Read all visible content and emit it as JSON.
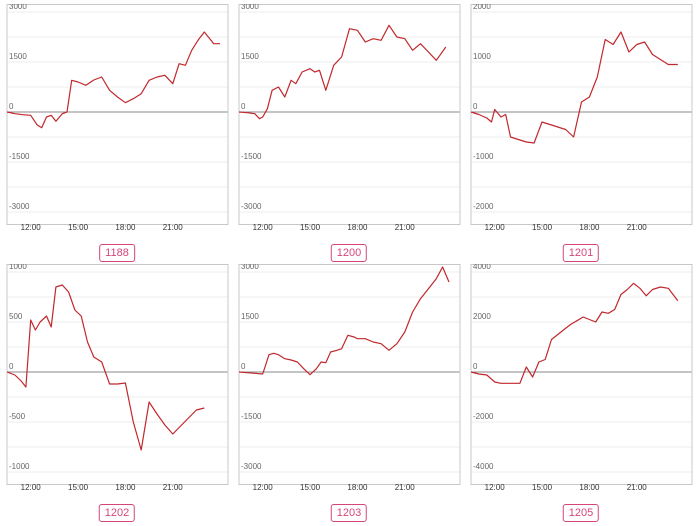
{
  "theme": {
    "line_color": "#c0282d",
    "badge_color": "#d6457a"
  },
  "chart_data": [
    {
      "type": "line",
      "label": "1188",
      "yticks": [
        3000,
        1500,
        0,
        -1500,
        -3000
      ],
      "ylim": [
        -3000,
        3000
      ],
      "xticks": [
        "12:00",
        "15:00",
        "18:00",
        "21:00"
      ],
      "xtick_pos": [
        11,
        14,
        17,
        20
      ],
      "xlim": [
        9.5,
        23.5
      ],
      "x": [
        9.5,
        10.0,
        10.5,
        11.0,
        11.4,
        11.7,
        12.0,
        12.3,
        12.6,
        13.0,
        13.3,
        13.6,
        14.0,
        14.5,
        15.0,
        15.5,
        16.0,
        16.5,
        17.0,
        17.5,
        18.0,
        18.5,
        19.0,
        19.5,
        20.0,
        20.4,
        20.8,
        21.2,
        21.6,
        22.0,
        22.6,
        23.0
      ],
      "y": [
        0,
        -50,
        -80,
        -100,
        -380,
        -470,
        -150,
        -100,
        -280,
        -50,
        0,
        950,
        900,
        800,
        960,
        1050,
        650,
        450,
        280,
        400,
        550,
        950,
        1050,
        1100,
        850,
        1450,
        1400,
        1850,
        2150,
        2400,
        2050,
        2050
      ]
    },
    {
      "type": "line",
      "label": "1200",
      "yticks": [
        3000,
        1500,
        0,
        -1500,
        -3000
      ],
      "ylim": [
        -3000,
        3000
      ],
      "xticks": [
        "12:00",
        "15:00",
        "18:00",
        "21:00"
      ],
      "xtick_pos": [
        11,
        14,
        17,
        20
      ],
      "xlim": [
        9.5,
        23.5
      ],
      "x": [
        9.5,
        10.0,
        10.5,
        10.8,
        11.0,
        11.3,
        11.6,
        12.0,
        12.4,
        12.8,
        13.1,
        13.5,
        14.0,
        14.3,
        14.6,
        15.0,
        15.5,
        16.0,
        16.5,
        17.0,
        17.5,
        18.0,
        18.5,
        19.0,
        19.5,
        20.0,
        20.5,
        21.0,
        21.5,
        22.0,
        22.6
      ],
      "y": [
        0,
        -20,
        -50,
        -200,
        -150,
        100,
        650,
        750,
        450,
        950,
        850,
        1200,
        1300,
        1200,
        1250,
        650,
        1400,
        1650,
        2500,
        2450,
        2100,
        2200,
        2150,
        2600,
        2250,
        2200,
        1850,
        2050,
        1800,
        1550,
        1950
      ]
    },
    {
      "type": "line",
      "label": "1201",
      "yticks": [
        2000,
        1000,
        0,
        -1000,
        -2000
      ],
      "ylim": [
        -2000,
        2000
      ],
      "xticks": [
        "12:00",
        "15:00",
        "18:00",
        "21:00"
      ],
      "xtick_pos": [
        11,
        14,
        17,
        20
      ],
      "xlim": [
        9.5,
        23.5
      ],
      "x": [
        9.5,
        10.0,
        10.5,
        10.8,
        11.0,
        11.4,
        11.7,
        12.0,
        12.5,
        13.0,
        13.5,
        14.0,
        14.5,
        15.0,
        15.5,
        16.0,
        16.5,
        17.0,
        17.5,
        18.0,
        18.5,
        19.0,
        19.5,
        20.0,
        20.5,
        21.0,
        21.5,
        22.0,
        22.6
      ],
      "y": [
        0,
        -50,
        -120,
        -200,
        50,
        -100,
        -50,
        -500,
        -550,
        -600,
        -620,
        -200,
        -250,
        -300,
        -350,
        -500,
        200,
        300,
        700,
        1450,
        1350,
        1600,
        1200,
        1350,
        1400,
        1150,
        1050,
        950,
        950
      ]
    },
    {
      "type": "line",
      "label": "1202",
      "yticks": [
        1000,
        500,
        0,
        -500,
        -1000
      ],
      "ylim": [
        -1000,
        1000
      ],
      "xticks": [
        "12:00",
        "15:00",
        "18:00",
        "21:00"
      ],
      "xtick_pos": [
        11,
        14,
        17,
        20
      ],
      "xlim": [
        9.5,
        23.5
      ],
      "x": [
        9.5,
        10.0,
        10.4,
        10.7,
        11.0,
        11.3,
        11.6,
        12.0,
        12.3,
        12.6,
        13.0,
        13.4,
        13.8,
        14.2,
        14.6,
        15.0,
        15.5,
        16.0,
        16.5,
        17.0,
        17.5,
        18.0,
        18.5,
        19.0,
        19.5,
        20.0,
        20.5,
        21.0,
        21.5,
        22.0
      ],
      "y": [
        0,
        -30,
        -90,
        -150,
        520,
        420,
        500,
        560,
        450,
        850,
        870,
        800,
        620,
        560,
        300,
        150,
        100,
        -120,
        -120,
        -110,
        -500,
        -780,
        -300,
        -420,
        -530,
        -620,
        -540,
        -460,
        -380,
        -360
      ]
    },
    {
      "type": "line",
      "label": "1203",
      "yticks": [
        3000,
        1500,
        0,
        -1500,
        -3000
      ],
      "ylim": [
        -3000,
        3000
      ],
      "xticks": [
        "12:00",
        "15:00",
        "18:00",
        "21:00"
      ],
      "xtick_pos": [
        11,
        14,
        17,
        20
      ],
      "xlim": [
        9.5,
        23.5
      ],
      "x": [
        9.5,
        10.0,
        10.5,
        11.0,
        11.4,
        11.7,
        12.0,
        12.4,
        12.8,
        13.2,
        13.6,
        14.0,
        14.4,
        14.7,
        15.0,
        15.3,
        15.7,
        16.0,
        16.4,
        16.8,
        17.0,
        17.5,
        18.0,
        18.5,
        19.0,
        19.5,
        20.0,
        20.5,
        21.0,
        21.5,
        22.0,
        22.4,
        22.8
      ],
      "y": [
        0,
        -20,
        -40,
        -60,
        520,
        560,
        520,
        400,
        360,
        300,
        100,
        -80,
        100,
        300,
        280,
        600,
        650,
        700,
        1100,
        1050,
        1000,
        1000,
        900,
        850,
        650,
        850,
        1200,
        1800,
        2200,
        2500,
        2800,
        3150,
        2700
      ]
    },
    {
      "type": "line",
      "label": "1205",
      "yticks": [
        4000,
        2000,
        0,
        -2000,
        -4000
      ],
      "ylim": [
        -4000,
        4000
      ],
      "xticks": [
        "12:00",
        "15:00",
        "18:00",
        "21:00"
      ],
      "xtick_pos": [
        11,
        14,
        17,
        20
      ],
      "xlim": [
        9.5,
        23.5
      ],
      "x": [
        9.5,
        10.0,
        10.5,
        11.0,
        11.4,
        11.8,
        12.2,
        12.6,
        13.0,
        13.4,
        13.8,
        14.2,
        14.6,
        15.0,
        15.4,
        15.8,
        16.2,
        16.6,
        17.0,
        17.4,
        17.8,
        18.2,
        18.6,
        19.0,
        19.4,
        19.8,
        20.2,
        20.6,
        21.0,
        21.5,
        22.0,
        22.6
      ],
      "y": [
        0,
        -80,
        -120,
        -400,
        -450,
        -450,
        -450,
        -450,
        200,
        -200,
        400,
        500,
        1300,
        1500,
        1700,
        1900,
        2050,
        2200,
        2100,
        2000,
        2400,
        2350,
        2500,
        3100,
        3300,
        3550,
        3350,
        3050,
        3300,
        3400,
        3350,
        2850
      ]
    }
  ]
}
